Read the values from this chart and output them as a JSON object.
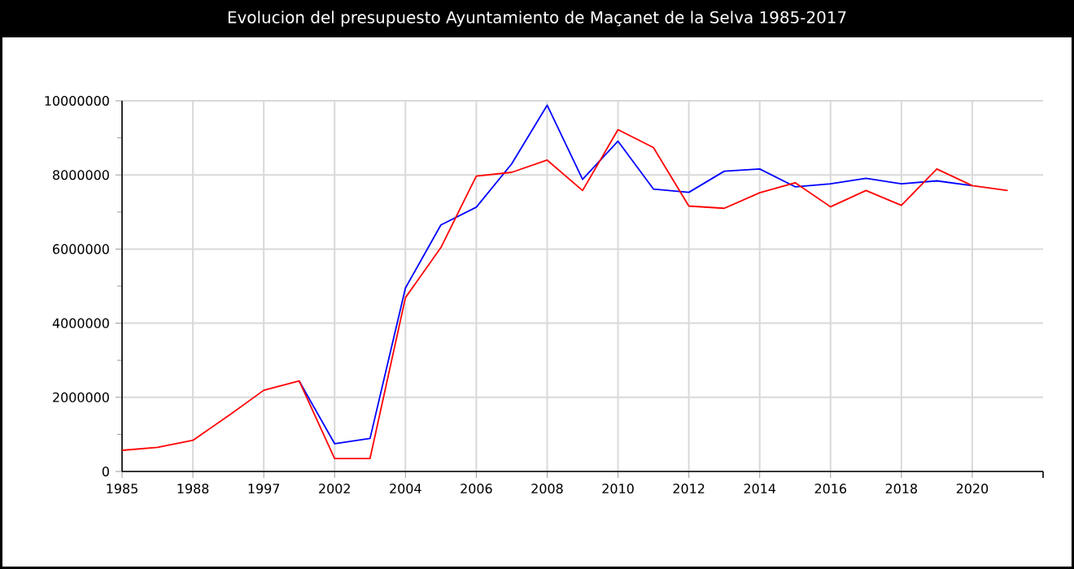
{
  "chart_data": {
    "type": "line",
    "title": "Evolucion del presupuesto Ayuntamiento de Maçanet de la Selva 1985-2017",
    "categories": [
      "1985",
      null,
      "1988",
      null,
      "1997",
      null,
      "2002",
      null,
      "2004",
      null,
      "2006",
      null,
      "2008",
      null,
      "2010",
      null,
      "2012",
      null,
      "2014",
      null,
      "2016",
      null,
      "2018",
      null,
      "2020",
      null,
      null
    ],
    "series": [
      {
        "color": "#0000ff",
        "values": [
          null,
          null,
          null,
          null,
          null,
          2440000,
          750000,
          890000,
          4950000,
          6650000,
          7130000,
          8300000,
          9880000,
          7880000,
          8910000,
          7620000,
          7530000,
          8100000,
          8160000,
          7680000,
          7760000,
          7910000,
          7760000,
          7840000,
          7710000,
          null,
          null
        ]
      },
      {
        "color": "#ff0000",
        "values": [
          570000,
          650000,
          840000,
          1500000,
          2190000,
          2440000,
          350000,
          350000,
          4690000,
          6040000,
          7970000,
          8070000,
          8400000,
          7580000,
          9220000,
          8740000,
          7160000,
          7100000,
          7520000,
          7790000,
          7140000,
          7580000,
          7180000,
          8160000,
          7710000,
          7580000,
          null
        ]
      }
    ],
    "ylim": [
      0,
      10000000
    ],
    "yticks": [
      0,
      2000000,
      4000000,
      6000000,
      8000000,
      10000000
    ],
    "grid": true,
    "marker": "none",
    "line_style": "solid"
  }
}
